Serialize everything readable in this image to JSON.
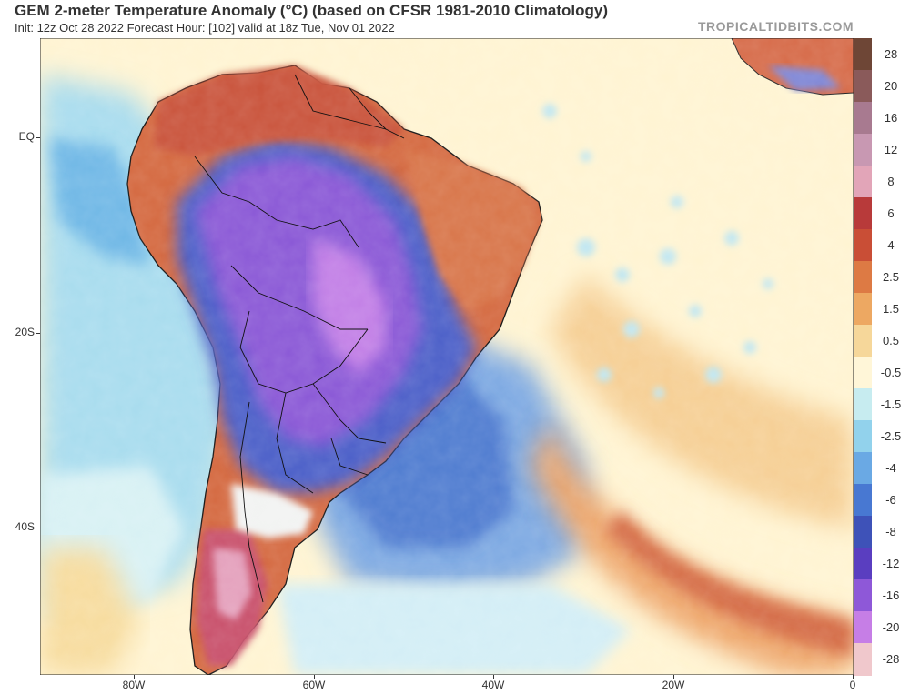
{
  "header": {
    "title": "GEM 2-meter Temperature Anomaly (°C) (based on CFSR 1981-2010 Climatology)",
    "subtitle": "Init: 12z Oct 28 2022   Forecast Hour: [102]   valid at 18z Tue, Nov 01 2022",
    "brand": "TROPICALTIDBITS.COM"
  },
  "map": {
    "lat_labels": [
      "EQ",
      "20S",
      "40S"
    ],
    "lon_labels": [
      "80W",
      "60W",
      "40W",
      "20W",
      "0"
    ]
  },
  "colorbar": {
    "labels": [
      "28",
      "20",
      "16",
      "12",
      "8",
      "6",
      "4",
      "2.5",
      "1.5",
      "0.5",
      "-0.5",
      "-1.5",
      "-2.5",
      "-4",
      "-6",
      "-8",
      "-12",
      "-16",
      "-20",
      "-28"
    ],
    "colors": [
      "#6e4636",
      "#8a5a5a",
      "#a87a90",
      "#c898b2",
      "#e2a5b8",
      "#b83a3a",
      "#c94e36",
      "#dd7a44",
      "#eda862",
      "#f6d79a",
      "#fff6d8",
      "#c7ecf0",
      "#92d2ec",
      "#6aa9e4",
      "#4878d2",
      "#3e52b8",
      "#5a3ec0",
      "#8e58d8",
      "#c67ee6",
      "#f0c8cc"
    ]
  }
}
